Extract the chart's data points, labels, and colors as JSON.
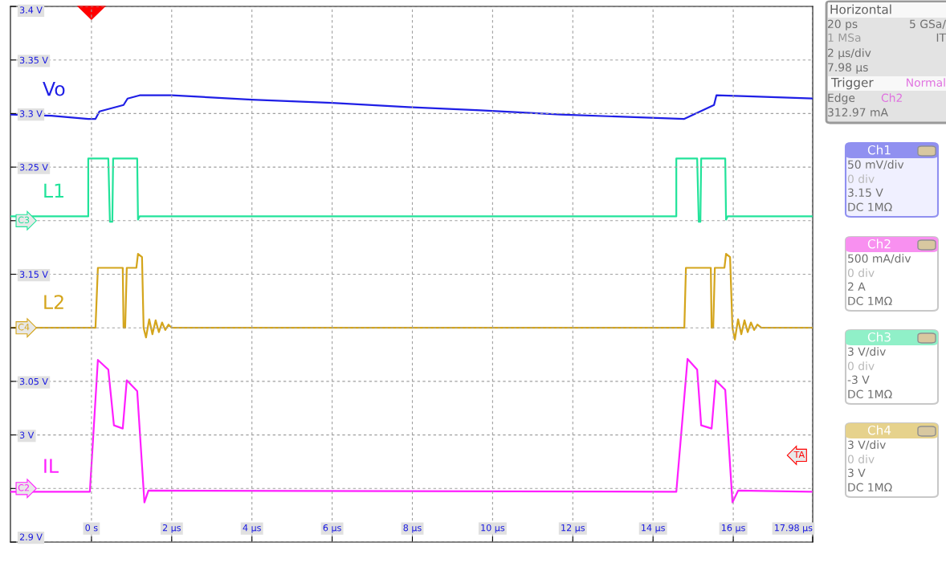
{
  "chart_data": {
    "type": "line",
    "series": [
      {
        "name": "Vo",
        "color": "#1f1fe6",
        "x": [
          -2.02,
          -1.0,
          -0.08,
          0.1,
          0.2,
          0.8,
          0.9,
          1.2,
          2.0,
          4.0,
          6.0,
          7.9,
          9.7,
          11.7,
          14.78,
          15.52,
          15.58,
          16.5,
          17.98
        ],
        "values": [
          3.299,
          3.298,
          3.295,
          3.295,
          3.302,
          3.308,
          3.314,
          3.317,
          3.317,
          3.313,
          3.31,
          3.306,
          3.303,
          3.299,
          3.295,
          3.308,
          3.317,
          3.316,
          3.314
        ]
      },
      {
        "name": "L1",
        "color": "#22e39a",
        "x": [
          -2.02,
          -0.08,
          -0.08,
          0.42,
          0.46,
          0.52,
          0.54,
          1.14,
          1.16,
          1.2,
          14.58,
          14.58,
          15.1,
          15.14,
          15.18,
          15.2,
          15.8,
          15.82,
          15.86,
          17.98
        ],
        "values": [
          3.204,
          3.204,
          3.258,
          3.258,
          3.199,
          3.199,
          3.258,
          3.258,
          3.201,
          3.204,
          3.204,
          3.258,
          3.258,
          3.199,
          3.199,
          3.258,
          3.258,
          3.201,
          3.204,
          3.204
        ]
      },
      {
        "name": "L2",
        "color": "#d4a51c",
        "x": [
          -2.02,
          0.1,
          0.16,
          0.78,
          0.8,
          0.84,
          0.88,
          1.12,
          1.16,
          1.26,
          1.3,
          1.36,
          1.44,
          1.52,
          1.6,
          1.68,
          1.76,
          1.84,
          1.92,
          2.0,
          14.78,
          14.82,
          15.44,
          15.46,
          15.5,
          15.54,
          15.78,
          15.82,
          15.92,
          15.98,
          16.04,
          16.12,
          16.2,
          16.28,
          16.36,
          16.44,
          16.52,
          16.6,
          16.7,
          17.98
        ],
        "values": [
          3.1,
          3.1,
          3.156,
          3.156,
          3.1,
          3.1,
          3.156,
          3.156,
          3.169,
          3.166,
          3.1,
          3.091,
          3.108,
          3.094,
          3.107,
          3.096,
          3.105,
          3.098,
          3.103,
          3.1,
          3.1,
          3.156,
          3.156,
          3.1,
          3.1,
          3.156,
          3.156,
          3.169,
          3.166,
          3.1,
          3.089,
          3.108,
          3.094,
          3.107,
          3.096,
          3.105,
          3.098,
          3.103,
          3.1,
          3.1
        ]
      },
      {
        "name": "IL",
        "color": "#ff1fff",
        "x": [
          -2.02,
          -0.04,
          0.16,
          0.42,
          0.56,
          0.78,
          0.88,
          1.14,
          1.32,
          1.42,
          14.58,
          14.86,
          15.1,
          15.2,
          15.46,
          15.56,
          15.8,
          15.98,
          16.12,
          17.98
        ],
        "values": [
          2.947,
          2.947,
          3.07,
          3.061,
          3.009,
          3.006,
          3.051,
          3.041,
          2.937,
          2.948,
          2.947,
          3.071,
          3.061,
          3.009,
          3.006,
          3.051,
          3.042,
          2.937,
          2.948,
          2.947
        ]
      }
    ],
    "xlim": [
      -2.02,
      17.98
    ],
    "xticks": [
      {
        "value": 0,
        "label": "0 s"
      },
      {
        "value": 2,
        "label": "2 µs"
      },
      {
        "value": 4,
        "label": "4 µs"
      },
      {
        "value": 6,
        "label": "6 µs"
      },
      {
        "value": 8,
        "label": "8 µs"
      },
      {
        "value": 10,
        "label": "10 µs"
      },
      {
        "value": 12,
        "label": "12 µs"
      },
      {
        "value": 14,
        "label": "14 µs"
      },
      {
        "value": 16,
        "label": "16 µs"
      },
      {
        "value": 17.98,
        "label": "17.98 µs"
      }
    ],
    "ylim": [
      2.9,
      3.4
    ],
    "yticks": [
      {
        "value": 2.9,
        "label": "2.9 V"
      },
      {
        "value": 2.95,
        "label": null
      },
      {
        "value": 3.0,
        "label": "3 V"
      },
      {
        "value": 3.05,
        "label": "3.05 V"
      },
      {
        "value": 3.1,
        "label": null
      },
      {
        "value": 3.15,
        "label": "3.15 V"
      },
      {
        "value": 3.2,
        "label": null
      },
      {
        "value": 3.25,
        "label": "3.25 V"
      },
      {
        "value": 3.3,
        "label": "3.3 V"
      },
      {
        "value": 3.35,
        "label": "3.35 V"
      },
      {
        "value": 3.4,
        "label": "3.4 V"
      }
    ],
    "grid": true,
    "legend": false,
    "marker": "none",
    "line_style": "solid",
    "annotations": [
      "Horizontal",
      "20 ps",
      "5 GSa/",
      "1 MSa",
      "IT",
      "2 µs/div",
      "7.98 µs",
      "Trigger",
      "Normal",
      "Edge",
      "Ch2",
      "312.97 mA",
      "Ch1",
      "50 mV/div",
      "0 div",
      "3.15 V",
      "DC 1MΩ",
      "Ch2",
      "500 mA/div",
      "0 div",
      "2 A",
      "DC 1MΩ",
      "Ch3",
      "3 V/div",
      "0 div",
      "-3 V",
      "DC 1MΩ",
      "Ch4",
      "3 V/div",
      "0 div",
      "3 V",
      "DC 1MΩ",
      "C3",
      "C4",
      "C2",
      "TA"
    ]
  }
}
